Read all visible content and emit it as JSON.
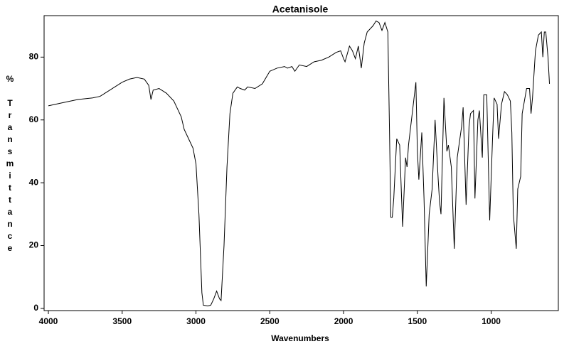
{
  "chart_data": {
    "type": "line",
    "title": "Acetanisole",
    "x_label": "Wavenumbers",
    "y_label": "% Transmittance",
    "color": "#000000",
    "xlim": [
      4029,
      545
    ],
    "ylim": [
      -0.7,
      93.2
    ],
    "xticks": [
      4000,
      3500,
      3000,
      2500,
      2000,
      1500,
      1000
    ],
    "yticks": [
      0,
      20,
      40,
      60,
      80
    ],
    "x": [
      4000,
      3900,
      3800,
      3700,
      3650,
      3600,
      3500,
      3450,
      3400,
      3350,
      3320,
      3305,
      3290,
      3250,
      3200,
      3150,
      3100,
      3080,
      3050,
      3020,
      3000,
      2980,
      2960,
      2950,
      2920,
      2900,
      2880,
      2860,
      2840,
      2830,
      2810,
      2790,
      2770,
      2750,
      2720,
      2700,
      2670,
      2650,
      2600,
      2550,
      2500,
      2450,
      2400,
      2380,
      2350,
      2330,
      2300,
      2250,
      2200,
      2150,
      2100,
      2050,
      2020,
      2000,
      1990,
      1960,
      1940,
      1920,
      1900,
      1880,
      1860,
      1840,
      1800,
      1780,
      1760,
      1740,
      1720,
      1700,
      1690,
      1680,
      1670,
      1660,
      1640,
      1620,
      1600,
      1580,
      1570,
      1560,
      1530,
      1510,
      1500,
      1490,
      1470,
      1455,
      1440,
      1420,
      1400,
      1380,
      1360,
      1350,
      1340,
      1320,
      1300,
      1290,
      1270,
      1250,
      1230,
      1200,
      1190,
      1170,
      1150,
      1140,
      1120,
      1110,
      1090,
      1080,
      1060,
      1050,
      1030,
      1010,
      990,
      980,
      960,
      950,
      930,
      910,
      890,
      870,
      860,
      850,
      830,
      820,
      800,
      790,
      760,
      740,
      730,
      720,
      700,
      680,
      660,
      650,
      640,
      630,
      615,
      605
    ],
    "values": [
      64.5,
      65.5,
      66.5,
      67,
      67.5,
      69,
      72,
      73,
      73.5,
      73,
      71,
      66.5,
      69.5,
      70,
      68.5,
      66,
      61,
      57,
      54,
      51,
      46,
      30,
      5,
      1,
      0.8,
      1,
      3,
      5.5,
      3,
      2.5,
      20,
      45,
      62,
      68.5,
      70.5,
      70,
      69.5,
      70.5,
      70,
      71.5,
      75.5,
      76.5,
      77,
      76.5,
      77,
      75.5,
      77.5,
      77,
      78.5,
      79,
      80,
      81.5,
      82,
      79.5,
      78.5,
      83.5,
      82,
      79.5,
      83.5,
      76.5,
      84.5,
      88,
      90,
      91.5,
      91,
      88.5,
      91,
      88,
      60,
      29,
      29,
      35,
      54,
      52,
      26,
      48,
      45,
      52,
      64,
      72,
      50,
      41,
      56,
      35,
      7,
      30,
      38,
      60,
      42,
      34,
      30,
      67,
      50,
      52,
      45,
      19,
      48,
      58,
      64,
      33,
      58,
      62,
      63,
      35,
      60,
      63,
      48,
      68,
      68,
      28,
      55,
      67,
      65,
      54,
      65,
      69,
      68,
      66,
      56,
      30,
      19,
      38,
      42,
      62,
      70,
      70,
      62,
      67,
      82,
      87,
      88,
      80,
      88,
      88,
      80,
      71.5
    ]
  }
}
